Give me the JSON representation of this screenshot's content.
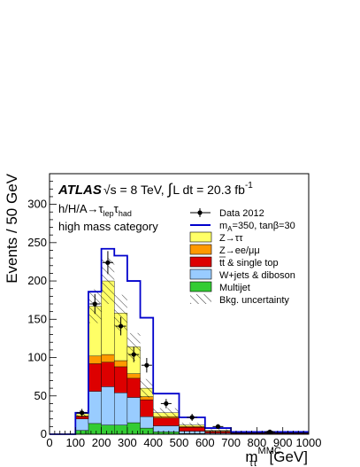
{
  "chart_data": {
    "type": "bar",
    "stacked": true,
    "x_edges": [
      0,
      100,
      150,
      200,
      250,
      300,
      350,
      400,
      500,
      600,
      700,
      1000
    ],
    "xlim": [
      0,
      1000
    ],
    "ylim": [
      0,
      340
    ],
    "ylabel": "Events / 50 GeV",
    "xlabel": "m",
    "xlabel_sup": "MMC",
    "xlabel_sub": "ττ",
    "xlabel_unit": "[GeV]",
    "x_ticks": [
      0,
      100,
      200,
      300,
      400,
      500,
      600,
      700,
      800,
      900,
      1000
    ],
    "y_ticks": [
      0,
      50,
      100,
      150,
      200,
      250,
      300
    ],
    "annotations": {
      "atlas": "ATLAS",
      "energy": "√s = 8 TeV,",
      "lumi_int": "∫",
      "lumi": "L dt = 20.3 fb",
      "lumi_sup": "-1",
      "channel_main": "h/H/A→τ",
      "channel_sub1": "lep",
      "channel_mid": "τ",
      "channel_sub2": "had",
      "category": "high mass category"
    },
    "legend_placement": "top-right",
    "legend": {
      "data": "Data 2012",
      "signal_a": "m",
      "signal_sub": "A",
      "signal_b": "=350, tanβ=30",
      "ztautau": "Z→ττ",
      "zll": "Z→ee/μμ",
      "top": "tt & single top",
      "wjets": "W+jets & diboson",
      "multijet": "Multijet",
      "unc": "Bkg. uncertainty"
    },
    "colors": {
      "ztautau": "#ffff66",
      "zll": "#ff9900",
      "top": "#dd0000",
      "wjets": "#99ccff",
      "multijet": "#33cc33",
      "signal": "#0000cc",
      "data": "#000000"
    },
    "series": [
      {
        "name": "Multijet",
        "key": "multijet",
        "values": [
          0,
          5,
          14,
          12,
          12,
          15,
          8,
          3,
          1,
          0.5,
          0.2
        ]
      },
      {
        "name": "W+jets & diboson",
        "key": "wjets",
        "values": [
          0,
          15,
          42,
          50,
          42,
          33,
          15,
          8,
          3,
          1,
          0.5
        ]
      },
      {
        "name": "tt & single top",
        "key": "top",
        "values": [
          0,
          3,
          36,
          32,
          34,
          25,
          22,
          10,
          5,
          2,
          0.8
        ]
      },
      {
        "name": "Z→ee/μμ",
        "key": "zll",
        "values": [
          0,
          1,
          10,
          10,
          8,
          6,
          4,
          2,
          1,
          0.5,
          0.2
        ]
      },
      {
        "name": "Z→ττ",
        "key": "ztautau",
        "values": [
          0,
          3,
          65,
          96,
          62,
          35,
          11,
          5,
          2,
          1,
          0.5
        ]
      }
    ],
    "signal_total": [
      0,
      28,
      186,
      242,
      233,
      200,
      152,
      53,
      22,
      8,
      3
    ],
    "bkg_uncertainty": [
      0,
      4,
      22,
      30,
      24,
      18,
      12,
      6,
      3,
      1.5,
      0.8
    ],
    "data_points": {
      "x": [
        125,
        175,
        225,
        275,
        325,
        375,
        450,
        550,
        650,
        850
      ],
      "y": [
        28,
        170,
        224,
        141,
        104,
        90,
        40,
        22,
        10,
        3
      ],
      "err": [
        5,
        13,
        15,
        12,
        10,
        9.5,
        6,
        4.6,
        3,
        1.7
      ]
    }
  }
}
